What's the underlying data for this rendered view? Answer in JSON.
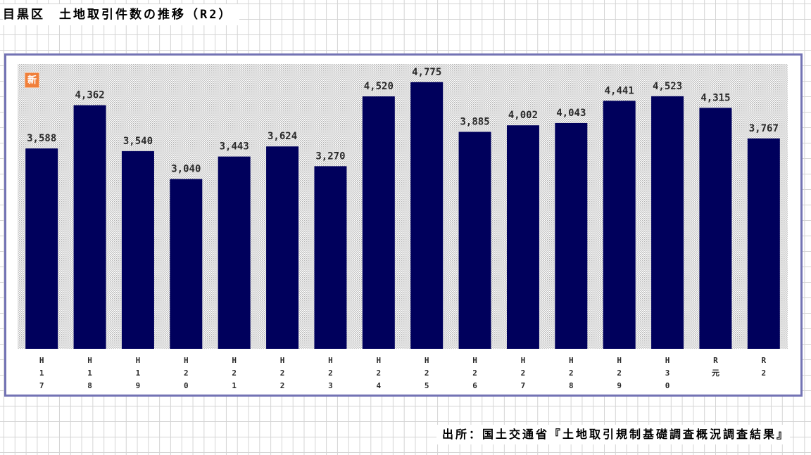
{
  "title": "目黒区　土地取引件数の推移（R2）",
  "badge": "新",
  "source": "出所：国土交通省『土地取引規制基礎調査概況調査結果』",
  "colors": {
    "bar": "#00005c",
    "frame": "#7373b4",
    "badge": "#f07f3a",
    "plot_dots": "#b3b3b3"
  },
  "chart_data": {
    "type": "bar",
    "categories": [
      "H17",
      "H18",
      "H19",
      "H20",
      "H21",
      "H22",
      "H23",
      "H24",
      "H25",
      "H26",
      "H27",
      "H28",
      "H29",
      "H30",
      "R元",
      "R2"
    ],
    "values": [
      3588,
      4362,
      3540,
      3040,
      3443,
      3624,
      3270,
      4520,
      4775,
      3885,
      4002,
      4043,
      4441,
      4523,
      4315,
      3767
    ],
    "value_labels": [
      "3,588",
      "4,362",
      "3,540",
      "3,040",
      "3,443",
      "3,624",
      "3,270",
      "4,520",
      "4,775",
      "3,885",
      "4,002",
      "4,043",
      "4,441",
      "4,523",
      "4,315",
      "3,767"
    ],
    "title": "目黒区　土地取引件数の推移（R2）",
    "xlabel": "",
    "ylabel": "",
    "ylim": [
      0,
      5100
    ],
    "grid": false,
    "legend": "none"
  }
}
